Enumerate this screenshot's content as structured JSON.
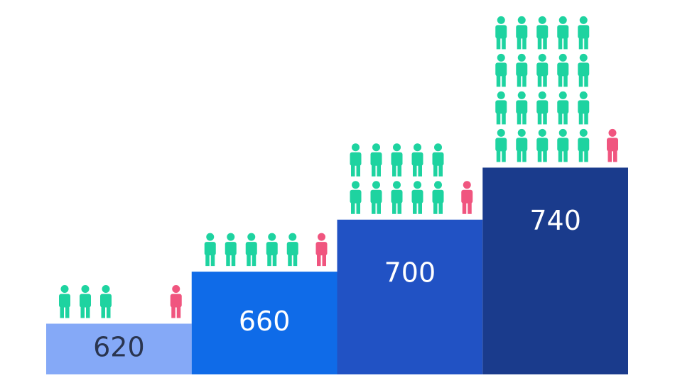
{
  "chart_data": {
    "type": "bar",
    "categories": [
      null,
      null,
      null,
      null
    ],
    "values": [
      620,
      660,
      700,
      740
    ],
    "colors": [
      "#85a9f7",
      "#0f6be8",
      "#2152c4",
      "#1a3b8c"
    ],
    "label_colors": [
      "#2a3550",
      "#ffffff",
      "#ffffff",
      "#ffffff"
    ],
    "ylim": [
      581,
      858
    ],
    "icons": [
      {
        "color": "#1ed3a0",
        "values": [
          3,
          5,
          10,
          20
        ]
      },
      {
        "color": "#f0557f",
        "values": [
          1,
          1,
          1,
          1
        ]
      }
    ]
  }
}
